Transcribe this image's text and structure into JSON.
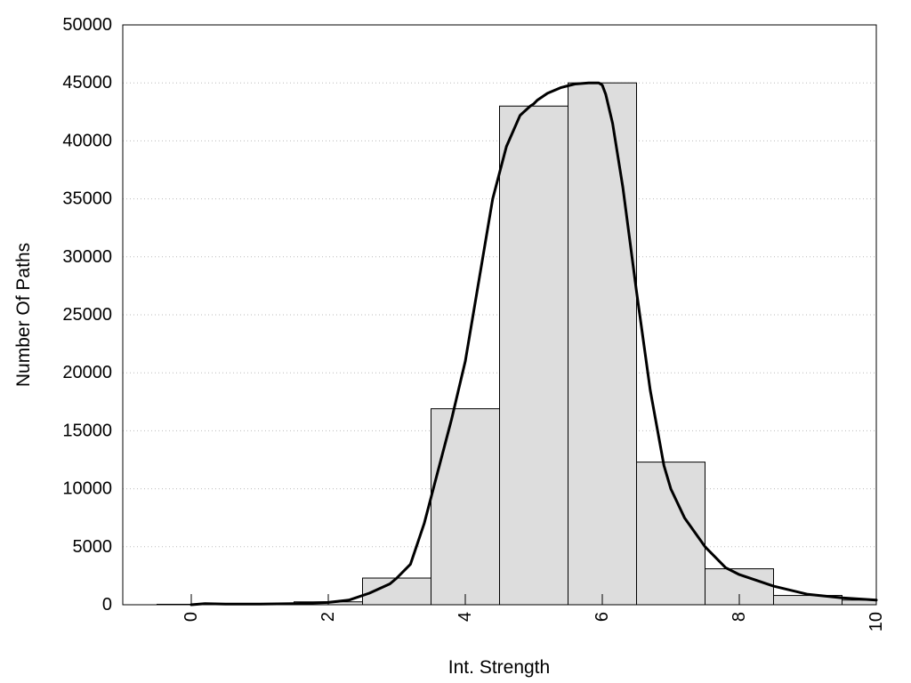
{
  "chart_data": {
    "type": "bar",
    "title": "",
    "xlabel": "Int. Strength",
    "ylabel": "Number Of Paths",
    "xlim": [
      -1,
      10
    ],
    "ylim": [
      0,
      50000
    ],
    "x_ticks": [
      0,
      2,
      4,
      6,
      8,
      10
    ],
    "y_ticks": [
      0,
      5000,
      10000,
      15000,
      20000,
      25000,
      30000,
      35000,
      40000,
      45000,
      50000
    ],
    "grid": "horizontal dotted",
    "bar_width": 1,
    "x": [
      0,
      1,
      2,
      3,
      4,
      5,
      6,
      7,
      8,
      9,
      10
    ],
    "values": [
      40,
      60,
      250,
      2300,
      16900,
      43000,
      45000,
      12300,
      3100,
      800,
      400
    ],
    "series": [
      {
        "type": "line",
        "x": [
          0,
          0.2,
          0.5,
          1,
          1.5,
          2,
          2.3,
          2.6,
          2.9,
          3.0,
          3.2,
          3.4,
          3.6,
          3.8,
          4.0,
          4.2,
          4.4,
          4.6,
          4.8,
          4.95,
          5.0,
          5.05,
          5.2,
          5.4,
          5.6,
          5.8,
          5.95,
          6.0,
          6.05,
          6.15,
          6.3,
          6.5,
          6.7,
          6.9,
          7.0,
          7.2,
          7.5,
          7.8,
          8.0,
          8.5,
          9.0,
          9.5,
          10.0
        ],
        "values": [
          0,
          100,
          50,
          50,
          100,
          200,
          400,
          1000,
          1800,
          2300,
          3500,
          7000,
          11500,
          16000,
          21000,
          28000,
          35000,
          39500,
          42200,
          43000,
          43200,
          43500,
          44100,
          44600,
          44900,
          45000,
          45000,
          44800,
          44000,
          41500,
          36000,
          27000,
          18500,
          12000,
          10000,
          7500,
          5000,
          3200,
          2600,
          1600,
          900,
          600,
          400
        ]
      }
    ],
    "bar_color": "#dddddd",
    "bar_edge_color": "#000000",
    "line_color": "#000000"
  }
}
